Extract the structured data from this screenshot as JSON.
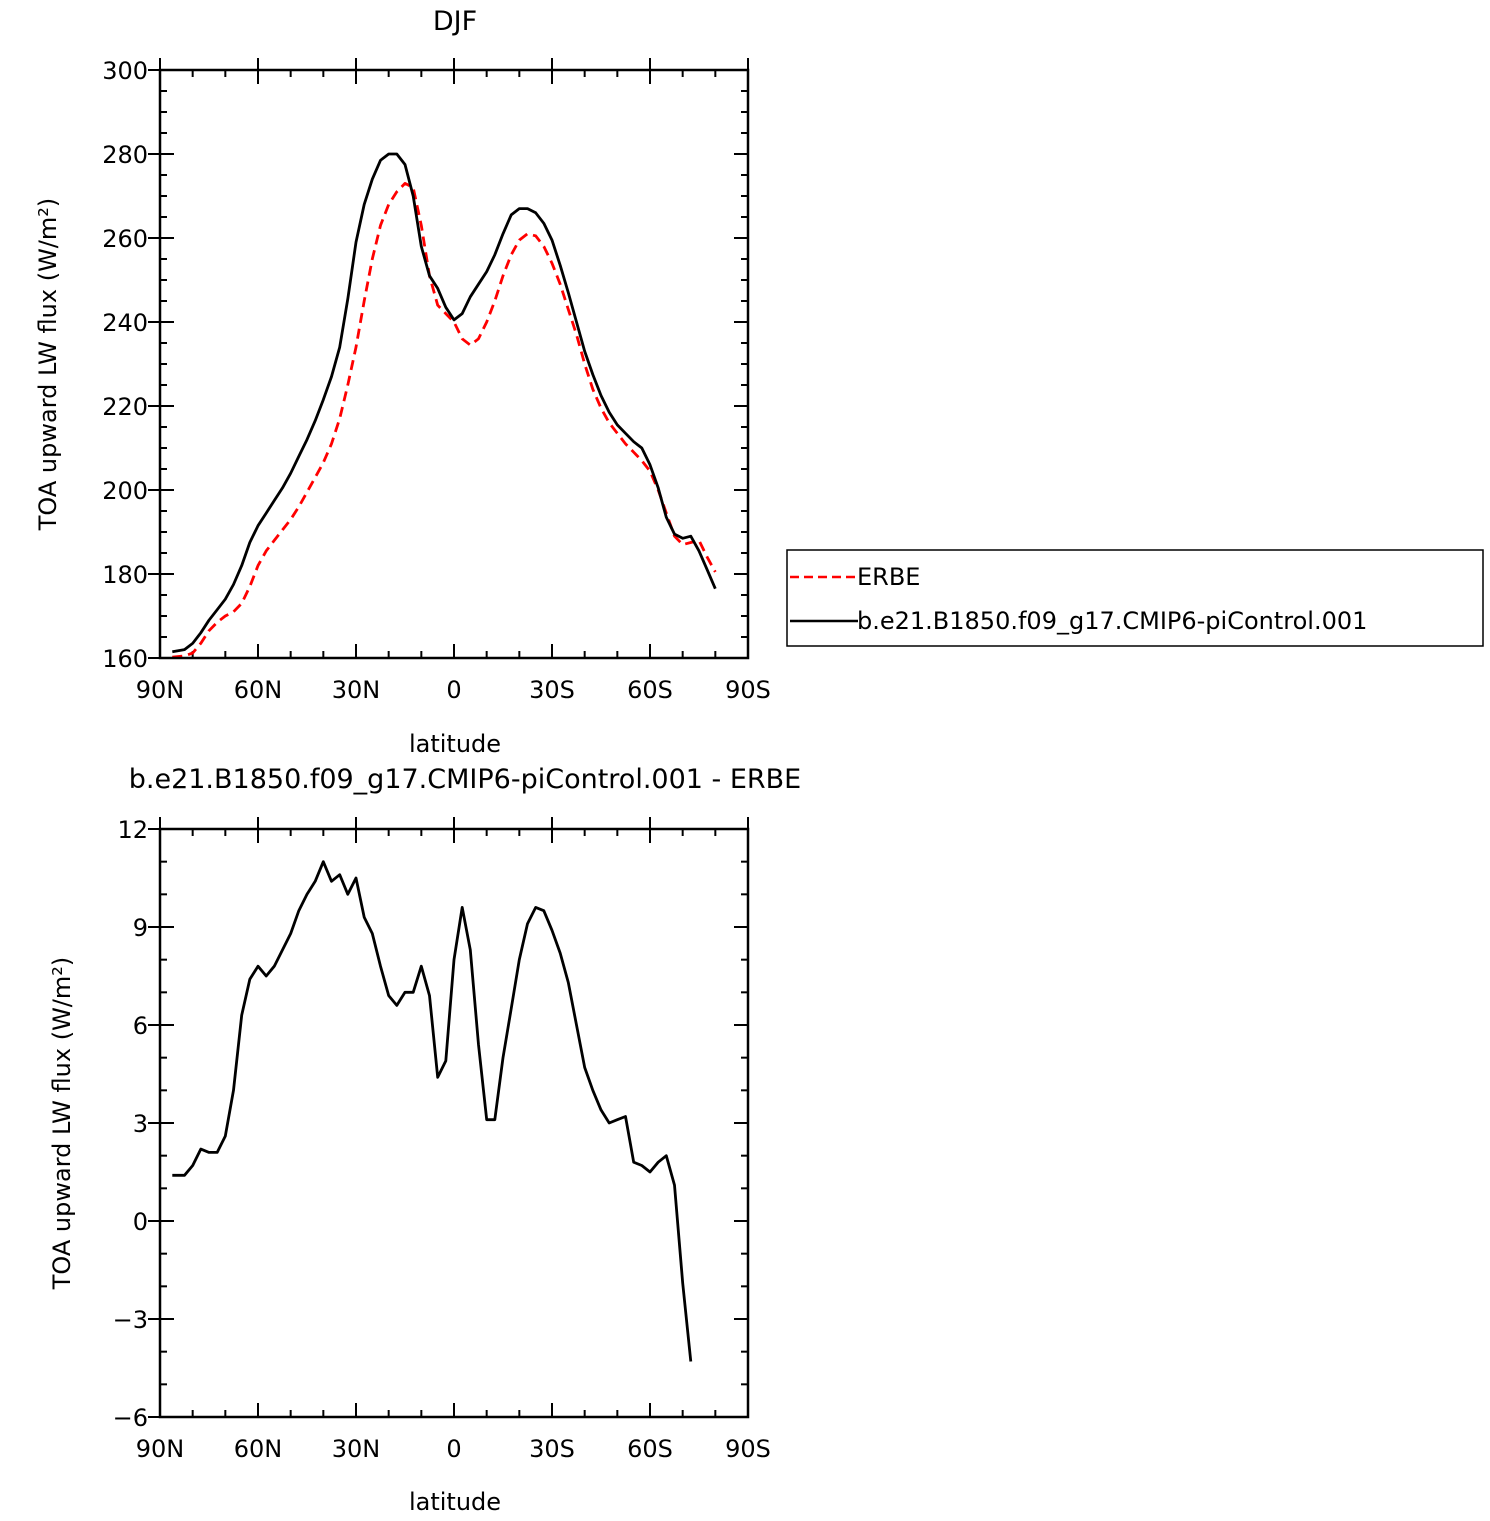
{
  "chart_data": [
    {
      "type": "line",
      "title": "DJF",
      "xlabel": "latitude",
      "ylabel": "TOA upward LW flux (W/m²)",
      "xlim": [
        -90,
        90
      ],
      "ylim": [
        160,
        300
      ],
      "x_ticks": [
        -90,
        -60,
        -30,
        0,
        30,
        60,
        90
      ],
      "x_tick_labels": [
        "90N",
        "60N",
        "30N",
        "0",
        "30S",
        "60S",
        "90S"
      ],
      "y_ticks": [
        160,
        180,
        200,
        220,
        240,
        260,
        280,
        300
      ],
      "y_tick_labels": [
        "160",
        "180",
        "200",
        "220",
        "240",
        "260",
        "280",
        "300"
      ],
      "legend": {
        "placement": "outside-right",
        "entries": [
          "ERBE",
          "b.e21.B1850.f09_g17.CMIP6-piControl.001"
        ]
      },
      "series": [
        {
          "name": "ERBE",
          "color": "#ff0000",
          "dash": "dashed",
          "points": [
            [
              -86.25,
              160.2
            ],
            [
              -82.5,
              160.5
            ],
            [
              -80,
              161.2
            ],
            [
              -77.5,
              163.5
            ],
            [
              -75,
              166.5
            ],
            [
              -72.5,
              168.5
            ],
            [
              -70,
              170
            ],
            [
              -67.5,
              171
            ],
            [
              -65,
              173
            ],
            [
              -62.5,
              177
            ],
            [
              -60,
              182
            ],
            [
              -57.5,
              185.5
            ],
            [
              -55,
              188
            ],
            [
              -52.5,
              190.5
            ],
            [
              -50,
              193
            ],
            [
              -47.5,
              196
            ],
            [
              -45,
              199.5
            ],
            [
              -42.5,
              203
            ],
            [
              -40,
              206.5
            ],
            [
              -37.5,
              211
            ],
            [
              -35,
              217
            ],
            [
              -32.5,
              225
            ],
            [
              -30,
              234
            ],
            [
              -27.5,
              245
            ],
            [
              -25,
              255
            ],
            [
              -22.5,
              263
            ],
            [
              -20,
              268
            ],
            [
              -17.5,
              271
            ],
            [
              -15,
              273
            ],
            [
              -12.5,
              272
            ],
            [
              -10,
              263
            ],
            [
              -7.5,
              251
            ],
            [
              -5,
              244
            ],
            [
              -2.5,
              242
            ],
            [
              0,
              240
            ],
            [
              2.5,
              236
            ],
            [
              5,
              234.5
            ],
            [
              7.5,
              236
            ],
            [
              10,
              240
            ],
            [
              12.5,
              245
            ],
            [
              15,
              251
            ],
            [
              17.5,
              256
            ],
            [
              20,
              259.5
            ],
            [
              22.5,
              261
            ],
            [
              25,
              260.5
            ],
            [
              27.5,
              258
            ],
            [
              30,
              254
            ],
            [
              32.5,
              249
            ],
            [
              35,
              243
            ],
            [
              37.5,
              237
            ],
            [
              40,
              230
            ],
            [
              42.5,
              224
            ],
            [
              45,
              219.5
            ],
            [
              47.5,
              216
            ],
            [
              50,
              213.5
            ],
            [
              52.5,
              211
            ],
            [
              55,
              209
            ],
            [
              57.5,
              207
            ],
            [
              60,
              204.5
            ],
            [
              62.5,
              200
            ],
            [
              65,
              194.5
            ],
            [
              67.5,
              189
            ],
            [
              70,
              187
            ],
            [
              72.5,
              187.5
            ],
            [
              75,
              188
            ],
            [
              77.5,
              184
            ],
            [
              80,
              180.5
            ]
          ]
        },
        {
          "name": "b.e21.B1850.f09_g17.CMIP6-piControl.001",
          "color": "#000000",
          "dash": "solid",
          "points": [
            [
              -86.25,
              161.5
            ],
            [
              -82.5,
              162
            ],
            [
              -80,
              163.5
            ],
            [
              -77.5,
              166
            ],
            [
              -75,
              169
            ],
            [
              -72.5,
              171.5
            ],
            [
              -70,
              174
            ],
            [
              -67.5,
              177.5
            ],
            [
              -65,
              182
            ],
            [
              -62.5,
              187.5
            ],
            [
              -60,
              191.5
            ],
            [
              -57.5,
              194.5
            ],
            [
              -55,
              197.5
            ],
            [
              -52.5,
              200.5
            ],
            [
              -50,
              204
            ],
            [
              -47.5,
              208
            ],
            [
              -45,
              212
            ],
            [
              -42.5,
              216.5
            ],
            [
              -40,
              221.5
            ],
            [
              -37.5,
              227
            ],
            [
              -35,
              234
            ],
            [
              -32.5,
              245.5
            ],
            [
              -30,
              259
            ],
            [
              -27.5,
              268
            ],
            [
              -25,
              274
            ],
            [
              -22.5,
              278.5
            ],
            [
              -20,
              280
            ],
            [
              -17.5,
              280
            ],
            [
              -15,
              277.5
            ],
            [
              -12.5,
              270
            ],
            [
              -10,
              258
            ],
            [
              -7.5,
              251
            ],
            [
              -5,
              248
            ],
            [
              -2.5,
              243.5
            ],
            [
              0,
              240.5
            ],
            [
              2.5,
              242
            ],
            [
              5,
              246
            ],
            [
              7.5,
              249
            ],
            [
              10,
              252
            ],
            [
              12.5,
              256
            ],
            [
              15,
              261
            ],
            [
              17.5,
              265.5
            ],
            [
              20,
              267
            ],
            [
              22.5,
              267
            ],
            [
              25,
              266
            ],
            [
              27.5,
              263.5
            ],
            [
              30,
              259.5
            ],
            [
              32.5,
              253.5
            ],
            [
              35,
              247
            ],
            [
              37.5,
              240
            ],
            [
              40,
              233
            ],
            [
              42.5,
              227.5
            ],
            [
              45,
              222.5
            ],
            [
              47.5,
              218.5
            ],
            [
              50,
              215.5
            ],
            [
              52.5,
              213.5
            ],
            [
              55,
              211.5
            ],
            [
              57.5,
              210
            ],
            [
              60,
              206
            ],
            [
              62.5,
              200.5
            ],
            [
              65,
              193.5
            ],
            [
              67.5,
              189.5
            ],
            [
              70,
              188.5
            ],
            [
              72.5,
              189
            ],
            [
              75,
              185.5
            ],
            [
              77.5,
              181
            ],
            [
              80,
              176.5
            ]
          ]
        }
      ]
    },
    {
      "type": "line",
      "title": "b.e21.B1850.f09_g17.CMIP6-piControl.001  - ERBE",
      "xlabel": "latitude",
      "ylabel": "TOA upward LW flux (W/m²)",
      "xlim": [
        -90,
        90
      ],
      "ylim": [
        -6,
        12
      ],
      "x_ticks": [
        -90,
        -60,
        -30,
        0,
        30,
        60,
        90
      ],
      "x_tick_labels": [
        "90N",
        "60N",
        "30N",
        "0",
        "30S",
        "60S",
        "90S"
      ],
      "y_ticks": [
        -6,
        -3,
        0,
        3,
        6,
        9,
        12
      ],
      "y_tick_labels": [
        "−6",
        "−3",
        "0",
        "3",
        "6",
        "9",
        "12"
      ],
      "series": [
        {
          "color": "#000000",
          "dash": "solid",
          "points": [
            [
              -86.25,
              1.4
            ],
            [
              -82.5,
              1.4
            ],
            [
              -80,
              1.7
            ],
            [
              -77.5,
              2.2
            ],
            [
              -75,
              2.1
            ],
            [
              -72.5,
              2.1
            ],
            [
              -70,
              2.6
            ],
            [
              -67.5,
              4
            ],
            [
              -65,
              6.3
            ],
            [
              -62.5,
              7.4
            ],
            [
              -60,
              7.8
            ],
            [
              -57.5,
              7.5
            ],
            [
              -55,
              7.8
            ],
            [
              -52.5,
              8.3
            ],
            [
              -50,
              8.8
            ],
            [
              -47.5,
              9.5
            ],
            [
              -45,
              10
            ],
            [
              -42.5,
              10.4
            ],
            [
              -40,
              11
            ],
            [
              -37.5,
              10.4
            ],
            [
              -35,
              10.6
            ],
            [
              -32.5,
              10
            ],
            [
              -30,
              10.5
            ],
            [
              -27.5,
              9.3
            ],
            [
              -25,
              8.8
            ],
            [
              -22.5,
              7.8
            ],
            [
              -20,
              6.9
            ],
            [
              -17.5,
              6.6
            ],
            [
              -15,
              7
            ],
            [
              -12.5,
              7
            ],
            [
              -10,
              7.8
            ],
            [
              -7.5,
              6.9
            ],
            [
              -5,
              4.4
            ],
            [
              -2.5,
              4.9
            ],
            [
              0,
              8
            ],
            [
              2.5,
              9.6
            ],
            [
              5,
              8.3
            ],
            [
              7.5,
              5.4
            ],
            [
              10,
              3.1
            ],
            [
              12.5,
              3.1
            ],
            [
              15,
              5
            ],
            [
              17.5,
              6.5
            ],
            [
              20,
              8
            ],
            [
              22.5,
              9.1
            ],
            [
              25,
              9.6
            ],
            [
              27.5,
              9.5
            ],
            [
              30,
              8.9
            ],
            [
              32.5,
              8.2
            ],
            [
              35,
              7.3
            ],
            [
              37.5,
              6
            ],
            [
              40,
              4.7
            ],
            [
              42.5,
              4
            ],
            [
              45,
              3.4
            ],
            [
              47.5,
              3
            ],
            [
              50,
              3.1
            ],
            [
              52.5,
              3.2
            ],
            [
              55,
              1.8
            ],
            [
              57.5,
              1.7
            ],
            [
              60,
              1.5
            ],
            [
              62.5,
              1.8
            ],
            [
              65,
              2
            ],
            [
              67.5,
              1.1
            ],
            [
              70,
              -1.9
            ],
            [
              72.5,
              -4.3
            ]
          ]
        }
      ]
    }
  ]
}
